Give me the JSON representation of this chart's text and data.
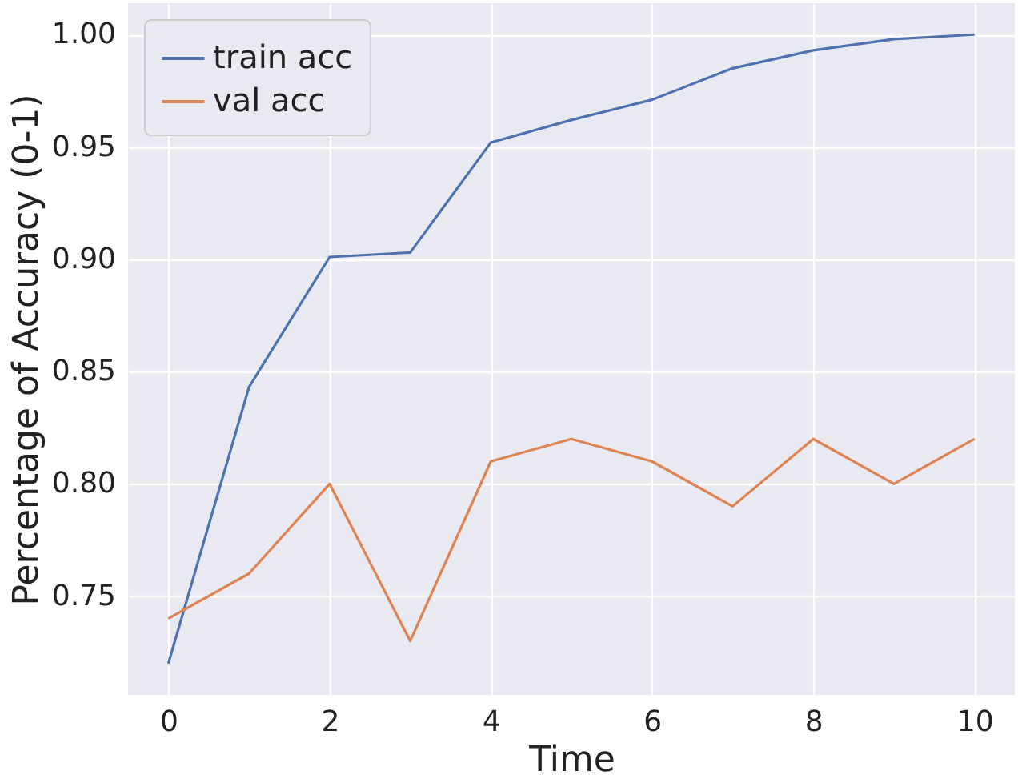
{
  "chart_data": {
    "type": "line",
    "xlabel": "Time",
    "ylabel": "Percentage of Accuracy (0-1)",
    "x": [
      0,
      1,
      2,
      3,
      4,
      5,
      6,
      7,
      8,
      9,
      10
    ],
    "series": [
      {
        "name": "train acc",
        "color": "#4c72b0",
        "values": [
          0.72,
          0.843,
          0.901,
          0.903,
          0.952,
          0.962,
          0.971,
          0.985,
          0.993,
          0.998,
          1.0
        ]
      },
      {
        "name": "val acc",
        "color": "#dd8452",
        "values": [
          0.74,
          0.76,
          0.8,
          0.73,
          0.81,
          0.82,
          0.81,
          0.79,
          0.82,
          0.8,
          0.82
        ]
      }
    ],
    "xlim": [
      -0.5,
      10.5
    ],
    "xticks": [
      0,
      2,
      4,
      6,
      8,
      10
    ],
    "ylim": [
      0.706,
      1.014
    ],
    "yticks": [
      {
        "value": 0.75,
        "label": "0.75"
      },
      {
        "value": 0.8,
        "label": "0.80"
      },
      {
        "value": 0.85,
        "label": "0.85"
      },
      {
        "value": 0.9,
        "label": "0.90"
      },
      {
        "value": 0.95,
        "label": "0.95"
      },
      {
        "value": 1.0,
        "label": "1.00"
      }
    ],
    "grid": true,
    "legend": "top left",
    "marker": "none",
    "line_style": "solid"
  }
}
